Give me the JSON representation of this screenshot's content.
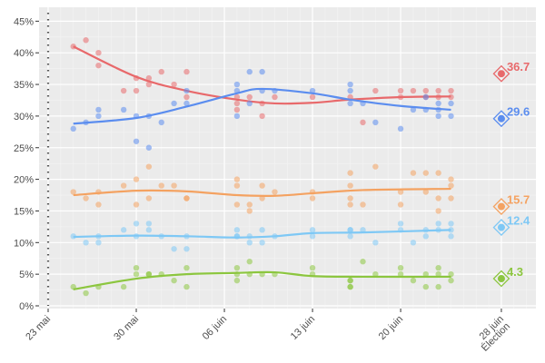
{
  "chart_data": {
    "type": "scatter",
    "title": "",
    "xlabel": "",
    "ylabel": "",
    "ylim": [
      0,
      45
    ],
    "yticks": [
      "0%",
      "5%",
      "10%",
      "15%",
      "20%",
      "25%",
      "30%",
      "35%",
      "40%",
      "45%"
    ],
    "ytick_values": [
      0,
      5,
      10,
      15,
      20,
      25,
      30,
      35,
      40,
      45
    ],
    "xticks": [
      {
        "date": "05-23",
        "label": "23 mai"
      },
      {
        "date": "05-30",
        "label": "30 mai"
      },
      {
        "date": "06-06",
        "label": "06 juin"
      },
      {
        "date": "06-13",
        "label": "13 juin"
      },
      {
        "date": "06-20",
        "label": "20 juin"
      },
      {
        "date": "06-28",
        "label": "28 juin",
        "label2": "Élection"
      }
    ],
    "grid": true,
    "vline_date": "05-23",
    "series": [
      {
        "color": "#e8696b",
        "result": 36.7,
        "result_label": "36.7",
        "points": [
          [
            "05-25",
            41
          ],
          [
            "05-26",
            42
          ],
          [
            "05-27",
            40
          ],
          [
            "05-27",
            38
          ],
          [
            "05-29",
            34
          ],
          [
            "05-30",
            36
          ],
          [
            "05-30",
            34
          ],
          [
            "05-31",
            36
          ],
          [
            "05-31",
            35
          ],
          [
            "06-01",
            37
          ],
          [
            "06-02",
            35
          ],
          [
            "06-03",
            37
          ],
          [
            "06-03",
            33
          ],
          [
            "06-07",
            33
          ],
          [
            "06-07",
            32
          ],
          [
            "06-07",
            31
          ],
          [
            "06-08",
            33
          ],
          [
            "06-09",
            32
          ],
          [
            "06-09",
            30
          ],
          [
            "06-10",
            33
          ],
          [
            "06-13",
            33
          ],
          [
            "06-16",
            33
          ],
          [
            "06-17",
            29
          ],
          [
            "06-18",
            34
          ],
          [
            "06-20",
            34
          ],
          [
            "06-20",
            33
          ],
          [
            "06-21",
            34
          ],
          [
            "06-22",
            34
          ],
          [
            "06-22",
            33
          ],
          [
            "06-23",
            34
          ],
          [
            "06-23",
            33
          ],
          [
            "06-24",
            34
          ],
          [
            "06-24",
            33
          ]
        ],
        "trend": [
          [
            "05-25",
            41
          ],
          [
            "05-30",
            36.2
          ],
          [
            "06-03",
            34
          ],
          [
            "06-07",
            32.6
          ],
          [
            "06-10",
            32
          ],
          [
            "06-13",
            32.1
          ],
          [
            "06-16",
            32.6
          ],
          [
            "06-20",
            33
          ],
          [
            "06-24",
            33.1
          ]
        ]
      },
      {
        "color": "#5b8def",
        "result": 29.6,
        "result_label": "29.6",
        "points": [
          [
            "05-25",
            28
          ],
          [
            "05-26",
            29
          ],
          [
            "05-27",
            31
          ],
          [
            "05-27",
            30
          ],
          [
            "05-29",
            31
          ],
          [
            "05-30",
            30
          ],
          [
            "05-30",
            26
          ],
          [
            "05-31",
            30
          ],
          [
            "05-31",
            25
          ],
          [
            "06-01",
            29
          ],
          [
            "06-02",
            32
          ],
          [
            "06-03",
            34
          ],
          [
            "06-03",
            32
          ],
          [
            "06-07",
            35
          ],
          [
            "06-07",
            34
          ],
          [
            "06-07",
            30
          ],
          [
            "06-08",
            37
          ],
          [
            "06-08",
            32
          ],
          [
            "06-09",
            37
          ],
          [
            "06-09",
            34
          ],
          [
            "06-10",
            34
          ],
          [
            "06-13",
            34
          ],
          [
            "06-16",
            35
          ],
          [
            "06-16",
            34
          ],
          [
            "06-16",
            32
          ],
          [
            "06-17",
            32
          ],
          [
            "06-18",
            29
          ],
          [
            "06-20",
            28
          ],
          [
            "06-21",
            31
          ],
          [
            "06-22",
            31
          ],
          [
            "06-22",
            33
          ],
          [
            "06-23",
            31
          ],
          [
            "06-23",
            30
          ],
          [
            "06-23",
            32
          ],
          [
            "06-24",
            32
          ],
          [
            "06-24",
            30
          ]
        ],
        "trend": [
          [
            "05-25",
            28.8
          ],
          [
            "05-30",
            29.7
          ],
          [
            "06-03",
            31.5
          ],
          [
            "06-07",
            33.6
          ],
          [
            "06-09",
            34.3
          ],
          [
            "06-13",
            33.6
          ],
          [
            "06-16",
            32.6
          ],
          [
            "06-20",
            31.6
          ],
          [
            "06-24",
            31
          ]
        ]
      },
      {
        "color": "#f4a261",
        "result": 15.7,
        "result_label": "15.7",
        "points": [
          [
            "05-25",
            18
          ],
          [
            "05-26",
            17
          ],
          [
            "05-27",
            18
          ],
          [
            "05-27",
            16
          ],
          [
            "05-29",
            19
          ],
          [
            "05-30",
            20
          ],
          [
            "05-30",
            16
          ],
          [
            "05-31",
            22
          ],
          [
            "05-31",
            17
          ],
          [
            "06-01",
            19
          ],
          [
            "06-02",
            19
          ],
          [
            "06-03",
            17
          ],
          [
            "06-03",
            17
          ],
          [
            "06-07",
            20
          ],
          [
            "06-07",
            19
          ],
          [
            "06-07",
            16
          ],
          [
            "06-08",
            16
          ],
          [
            "06-08",
            15
          ],
          [
            "06-09",
            19
          ],
          [
            "06-09",
            17
          ],
          [
            "06-10",
            18
          ],
          [
            "06-13",
            18
          ],
          [
            "06-13",
            17
          ],
          [
            "06-16",
            21
          ],
          [
            "06-16",
            19
          ],
          [
            "06-16",
            17
          ],
          [
            "06-16",
            16
          ],
          [
            "06-17",
            16
          ],
          [
            "06-18",
            22
          ],
          [
            "06-20",
            18
          ],
          [
            "06-20",
            16
          ],
          [
            "06-21",
            21
          ],
          [
            "06-22",
            21
          ],
          [
            "06-22",
            18
          ],
          [
            "06-23",
            21
          ],
          [
            "06-23",
            17
          ],
          [
            "06-23",
            15
          ],
          [
            "06-24",
            20
          ],
          [
            "06-24",
            19
          ],
          [
            "06-24",
            17
          ]
        ],
        "trend": [
          [
            "05-25",
            17.5
          ],
          [
            "05-30",
            18.2
          ],
          [
            "06-03",
            18.1
          ],
          [
            "06-07",
            17.5
          ],
          [
            "06-10",
            17.4
          ],
          [
            "06-13",
            17.8
          ],
          [
            "06-17",
            18.3
          ],
          [
            "06-24",
            18.5
          ]
        ]
      },
      {
        "color": "#7ec8f5",
        "result": 12.4,
        "result_label": "12.4",
        "points": [
          [
            "05-25",
            11
          ],
          [
            "05-26",
            10
          ],
          [
            "05-27",
            11
          ],
          [
            "05-27",
            10
          ],
          [
            "05-29",
            12
          ],
          [
            "05-30",
            13
          ],
          [
            "05-30",
            11
          ],
          [
            "05-31",
            13
          ],
          [
            "05-31",
            12
          ],
          [
            "06-01",
            11
          ],
          [
            "06-02",
            9
          ],
          [
            "06-03",
            11
          ],
          [
            "06-03",
            9
          ],
          [
            "06-07",
            12
          ],
          [
            "06-07",
            11
          ],
          [
            "06-07",
            11
          ],
          [
            "06-08",
            11
          ],
          [
            "06-08",
            10
          ],
          [
            "06-09",
            12
          ],
          [
            "06-09",
            10
          ],
          [
            "06-10",
            11
          ],
          [
            "06-13",
            12
          ],
          [
            "06-13",
            11
          ],
          [
            "06-16",
            12
          ],
          [
            "06-16",
            12
          ],
          [
            "06-16",
            11
          ],
          [
            "06-17",
            12
          ],
          [
            "06-18",
            10
          ],
          [
            "06-20",
            13
          ],
          [
            "06-20",
            12
          ],
          [
            "06-21",
            10
          ],
          [
            "06-22",
            12
          ],
          [
            "06-22",
            11
          ],
          [
            "06-23",
            13
          ],
          [
            "06-23",
            12
          ],
          [
            "06-24",
            13
          ],
          [
            "06-24",
            12
          ],
          [
            "06-24",
            11
          ]
        ],
        "trend": [
          [
            "05-25",
            10.9
          ],
          [
            "05-30",
            11.1
          ],
          [
            "06-03",
            11
          ],
          [
            "06-07",
            10.8
          ],
          [
            "06-10",
            11
          ],
          [
            "06-13",
            11.5
          ],
          [
            "06-17",
            11.6
          ],
          [
            "06-24",
            12
          ]
        ]
      },
      {
        "color": "#8cc63f",
        "result": 4.3,
        "result_label": "4.3",
        "points": [
          [
            "05-25",
            3
          ],
          [
            "05-26",
            2
          ],
          [
            "05-27",
            3
          ],
          [
            "05-29",
            3
          ],
          [
            "05-30",
            6
          ],
          [
            "05-30",
            5
          ],
          [
            "05-31",
            5
          ],
          [
            "05-31",
            5
          ],
          [
            "06-01",
            5
          ],
          [
            "06-02",
            4
          ],
          [
            "06-03",
            6
          ],
          [
            "06-03",
            3
          ],
          [
            "06-07",
            6
          ],
          [
            "06-07",
            5
          ],
          [
            "06-07",
            4
          ],
          [
            "06-08",
            7
          ],
          [
            "06-08",
            5
          ],
          [
            "06-09",
            5
          ],
          [
            "06-10",
            5
          ],
          [
            "06-13",
            6
          ],
          [
            "06-13",
            5
          ],
          [
            "06-16",
            4
          ],
          [
            "06-16",
            4
          ],
          [
            "06-16",
            3
          ],
          [
            "06-16",
            3
          ],
          [
            "06-17",
            7
          ],
          [
            "06-18",
            5
          ],
          [
            "06-20",
            6
          ],
          [
            "06-20",
            5
          ],
          [
            "06-21",
            4
          ],
          [
            "06-22",
            5
          ],
          [
            "06-22",
            3
          ],
          [
            "06-23",
            6
          ],
          [
            "06-23",
            5
          ],
          [
            "06-23",
            3
          ],
          [
            "06-24",
            5
          ],
          [
            "06-24",
            4
          ]
        ],
        "trend": [
          [
            "05-25",
            2.6
          ],
          [
            "05-30",
            4.3
          ],
          [
            "06-03",
            5
          ],
          [
            "06-07",
            5.2
          ],
          [
            "06-10",
            5.3
          ],
          [
            "06-13",
            4.7
          ],
          [
            "06-17",
            4.6
          ],
          [
            "06-24",
            4.6
          ]
        ]
      }
    ]
  }
}
